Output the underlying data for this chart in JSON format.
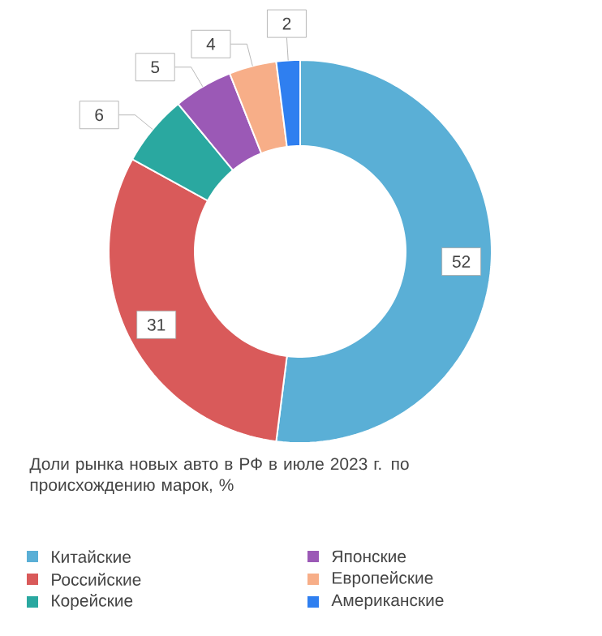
{
  "chart_data": {
    "type": "donut",
    "title": "Доли рынка новых авто в РФ в июле 2023 г. по происхождению марок, %",
    "categories": [
      "Китайские",
      "Российские",
      "Корейские",
      "Японские",
      "Европейские",
      "Американские"
    ],
    "values": [
      52,
      31,
      6,
      5,
      4,
      2
    ],
    "colors": [
      "#5aafd6",
      "#d95a5a",
      "#2aa8a0",
      "#9b59b6",
      "#f7ae88",
      "#2f7ff0"
    ],
    "data_labels": true,
    "legend": "bottom"
  }
}
